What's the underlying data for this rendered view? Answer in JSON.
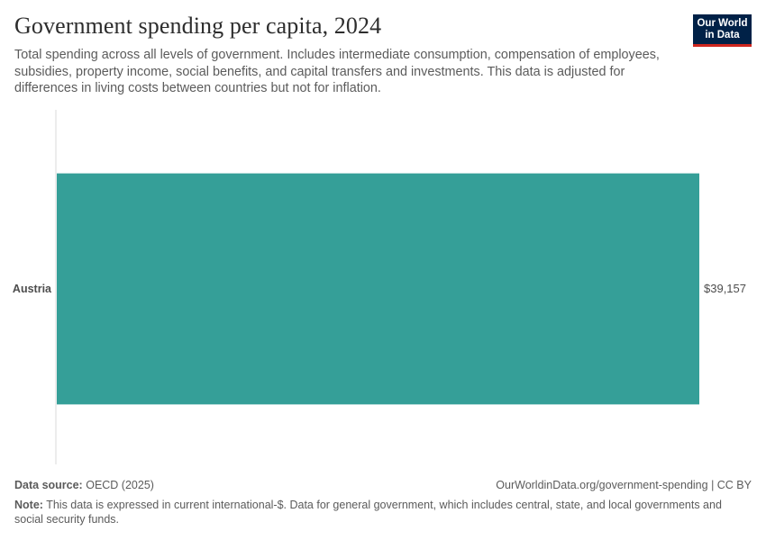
{
  "header": {
    "title": "Government spending per capita, 2024",
    "subtitle": "Total spending across all levels of government. Includes intermediate consumption, compensation of employees, subsidies, property income, social benefits, and capital transfers and investments. This data is adjusted for differences in living costs between countries but not for inflation."
  },
  "logo": {
    "line1": "Our World",
    "line2": "in Data",
    "bg": "#002147",
    "accent": "#ce261e"
  },
  "chart_data": {
    "type": "bar",
    "orientation": "horizontal",
    "categories": [
      "Austria"
    ],
    "values": [
      39157
    ],
    "value_labels": [
      "$39,157"
    ],
    "bar_color": "#359f98",
    "xlim": [
      0,
      39157
    ],
    "grid": false
  },
  "footer": {
    "source_label": "Data source:",
    "source_value": "OECD (2025)",
    "url": "OurWorldinData.org/government-spending | CC BY",
    "note_label": "Note:",
    "note_text": "This data is expressed in current international-$. Data for general government, which includes central, state, and local governments and social security funds."
  }
}
